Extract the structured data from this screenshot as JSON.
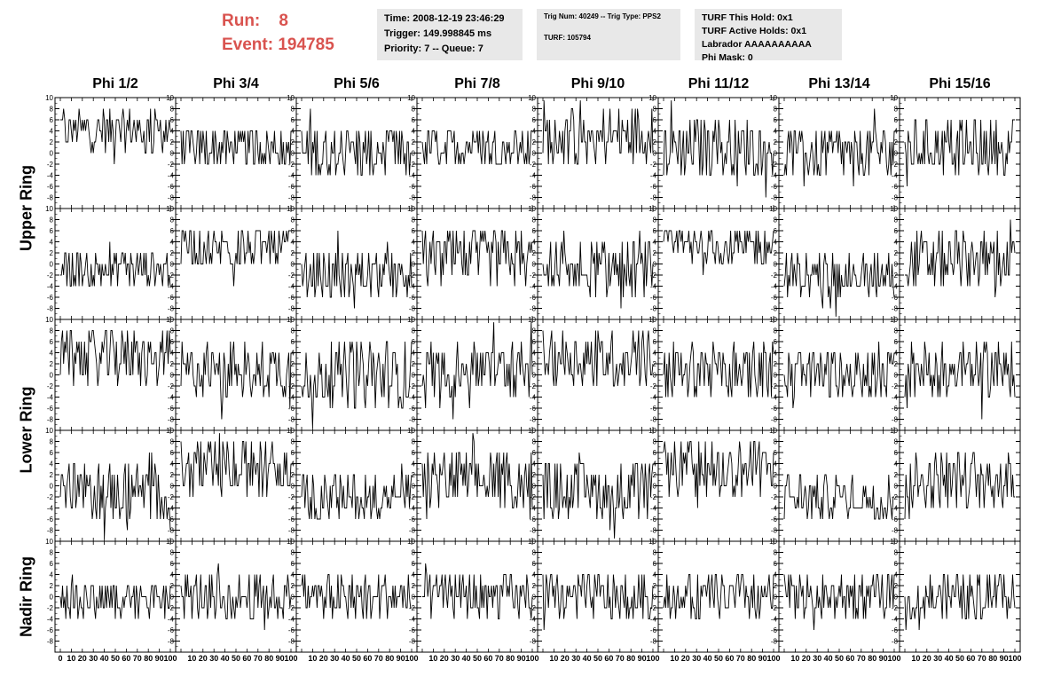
{
  "run_info": {
    "run_label": "Run:",
    "run_value": "8",
    "event_label": "Event:",
    "event_value": "194785"
  },
  "header_boxes": {
    "time": [
      "Time: 2008-12-19 23:46:29",
      "Trigger: 149.998845 ms",
      "Priority: 7 -- Queue: 7"
    ],
    "trig": {
      "line1": "Trig Num: 40249 -- Trig Type: PPS2",
      "line2": "TURF: 105794"
    },
    "turf": [
      "TURF This Hold: 0x1",
      "TURF Active Holds: 0x1",
      "Labrador AAAAAAAAAA",
      "Phi Mask: 0"
    ]
  },
  "chart_data": {
    "type": "line",
    "columns": [
      "Phi 1/2",
      "Phi 3/4",
      "Phi 5/6",
      "Phi 7/8",
      "Phi 9/10",
      "Phi 11/12",
      "Phi 13/14",
      "Phi 15/16"
    ],
    "row_groups": [
      "Upper Ring",
      "Lower Ring",
      "Nadir Ring"
    ],
    "y_ticks": [
      "10",
      "8",
      "6",
      "4",
      "2",
      "0",
      "-2",
      "-4",
      "-6",
      "-8"
    ],
    "x_ticks": [
      "0",
      "10",
      "20",
      "30",
      "40",
      "50",
      "60",
      "70",
      "80",
      "90",
      "100"
    ],
    "ylim": [
      -10,
      10
    ],
    "xlim": [
      0,
      100
    ],
    "offsets": [
      [
        4,
        1,
        0,
        1,
        3,
        1,
        0,
        1
      ],
      [
        -1,
        3,
        -2,
        1,
        -1,
        3,
        -2,
        1
      ],
      [
        3,
        1,
        0,
        1,
        3,
        1,
        0,
        1
      ],
      [
        -1,
        3,
        -2,
        1,
        -1,
        3,
        -2,
        1
      ],
      [
        0,
        0,
        0,
        0,
        0,
        0,
        0,
        0
      ]
    ],
    "amplitudes": [
      [
        4,
        4,
        5,
        4,
        5,
        5,
        5,
        5
      ],
      [
        4,
        4,
        4,
        5,
        5,
        4,
        4,
        5
      ],
      [
        5,
        5,
        6,
        5,
        5,
        5,
        5,
        5
      ],
      [
        5,
        5,
        4,
        5,
        5,
        5,
        4,
        5
      ],
      [
        4,
        4,
        4,
        4,
        4,
        4,
        4,
        4
      ]
    ],
    "line_color": "#000000"
  }
}
